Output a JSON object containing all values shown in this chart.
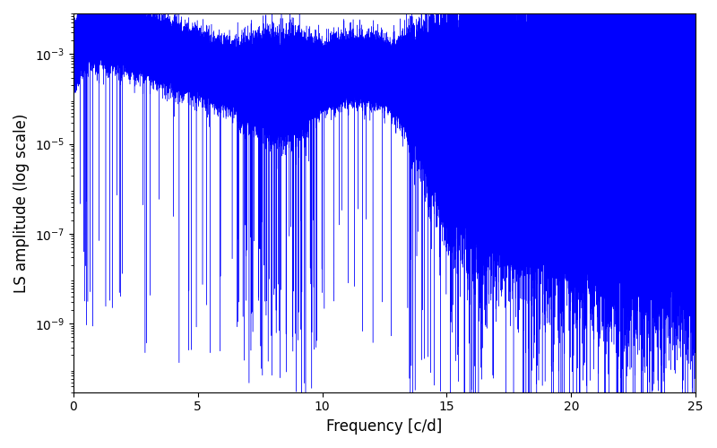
{
  "xlabel": "Frequency [c/d]",
  "ylabel": "LS amplitude (log scale)",
  "xlim": [
    0,
    25
  ],
  "ylim": [
    3e-11,
    0.008
  ],
  "yscale": "log",
  "line_color": "#0000ff",
  "linewidth": 0.3,
  "figsize": [
    8.0,
    5.0
  ],
  "dpi": 100,
  "yticks": [
    1e-09,
    1e-07,
    1e-05,
    0.001
  ],
  "xticks": [
    0,
    5,
    10,
    15,
    20,
    25
  ],
  "seed": 42,
  "n_points": 200000,
  "freq_max": 25.0
}
